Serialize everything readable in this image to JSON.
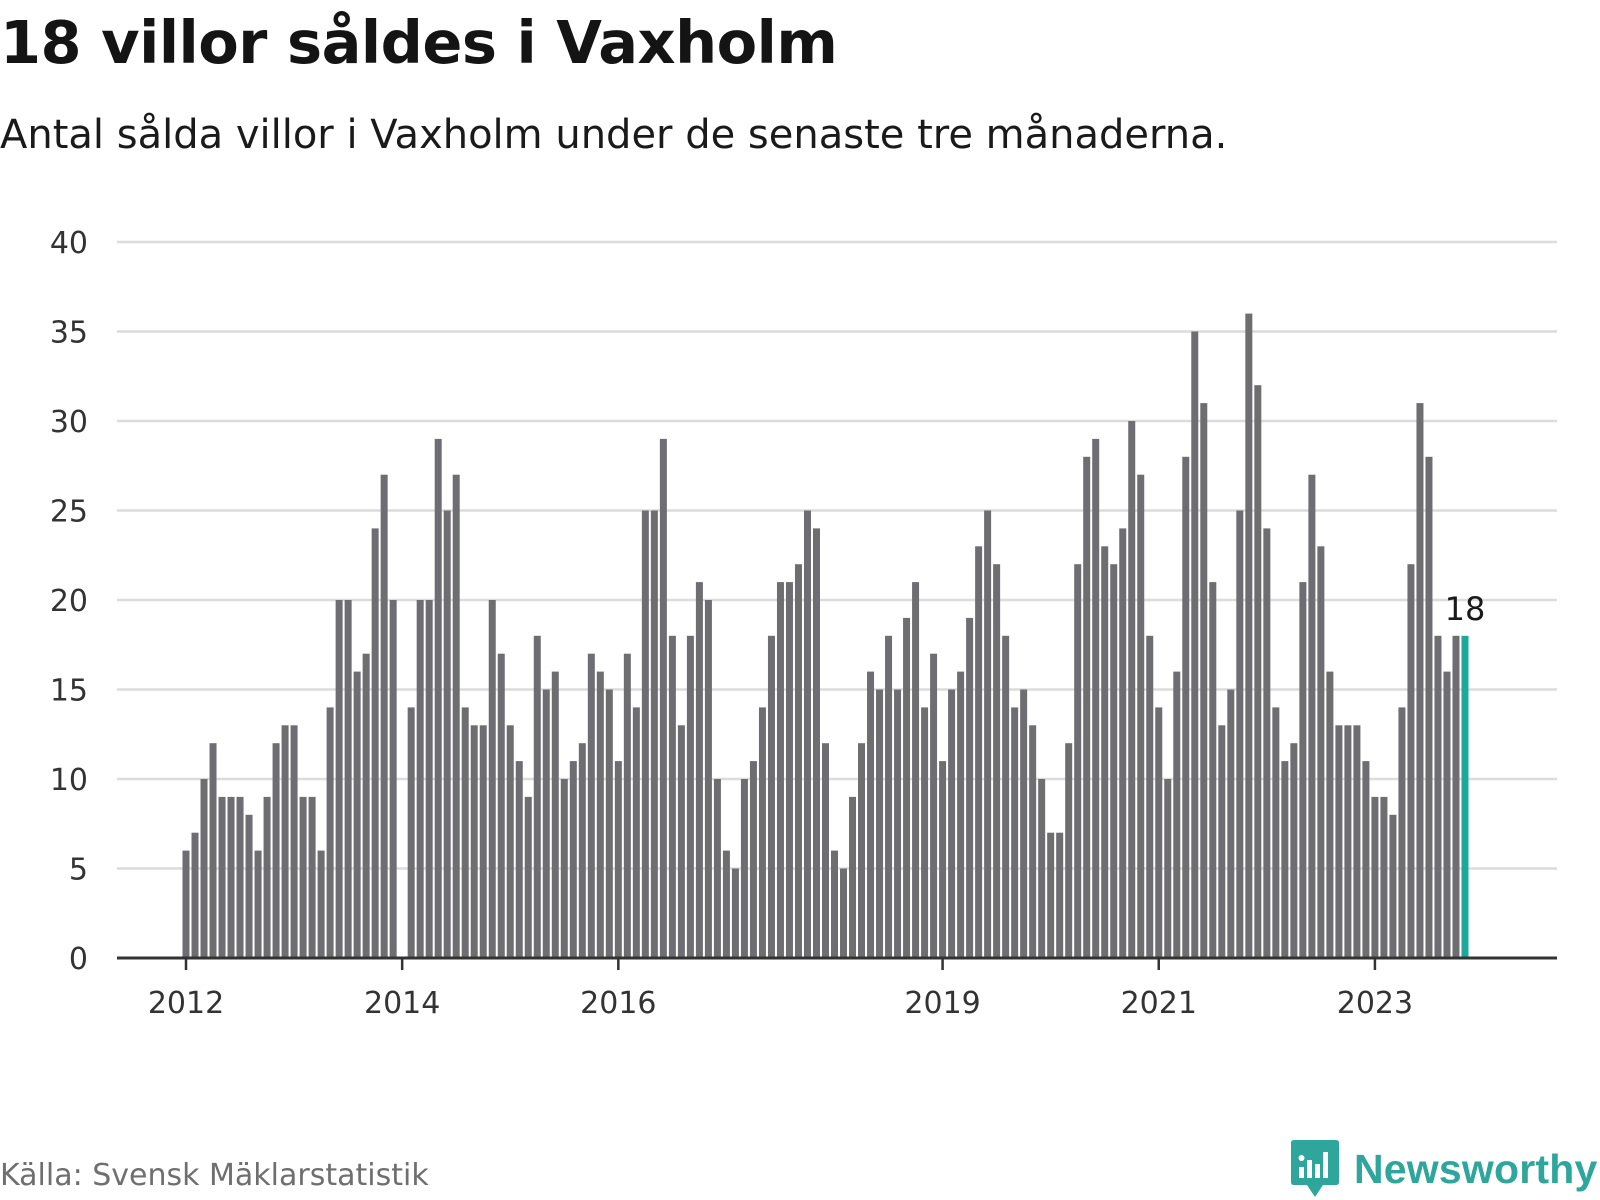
{
  "title": "18 villor såldes i Vaxholm",
  "subtitle": "Antal sålda villor i Vaxholm under de senaste tre månaderna.",
  "source": "Källa: Svensk Mäklarstatistik",
  "brand": "Newsworthy",
  "colors": {
    "bar": "#6e6d72",
    "highlight": "#1ea89c",
    "grid": "#dcdcdc",
    "axis": "#333333",
    "brand": "#2fa69c"
  },
  "chart_data": {
    "type": "bar",
    "title": "18 villor såldes i Vaxholm",
    "xlabel": "",
    "ylabel": "",
    "ylim": [
      0,
      40
    ],
    "yticks": [
      0,
      5,
      10,
      15,
      20,
      25,
      30,
      35,
      40
    ],
    "grid": true,
    "start": "2012-01",
    "xtick_labels": [
      {
        "label": "2012",
        "index": 0
      },
      {
        "label": "2014",
        "index": 24
      },
      {
        "label": "2016",
        "index": 48
      },
      {
        "label": "2019",
        "index": 84
      },
      {
        "label": "2021",
        "index": 108
      },
      {
        "label": "2023",
        "index": 132
      }
    ],
    "values": [
      6,
      7,
      10,
      12,
      9,
      9,
      9,
      8,
      6,
      9,
      12,
      13,
      13,
      9,
      9,
      6,
      14,
      20,
      20,
      16,
      17,
      24,
      27,
      20,
      0,
      14,
      20,
      20,
      29,
      25,
      27,
      14,
      13,
      13,
      20,
      17,
      13,
      11,
      9,
      18,
      15,
      16,
      10,
      11,
      12,
      17,
      16,
      15,
      11,
      17,
      14,
      25,
      25,
      29,
      18,
      13,
      18,
      21,
      20,
      10,
      6,
      5,
      10,
      11,
      14,
      18,
      21,
      21,
      22,
      25,
      24,
      12,
      6,
      5,
      9,
      12,
      16,
      15,
      18,
      15,
      19,
      21,
      14,
      17,
      11,
      15,
      16,
      19,
      23,
      25,
      22,
      18,
      14,
      15,
      13,
      10,
      7,
      7,
      12,
      22,
      28,
      29,
      23,
      22,
      24,
      30,
      27,
      18,
      14,
      10,
      16,
      28,
      35,
      31,
      21,
      13,
      15,
      25,
      36,
      32,
      24,
      14,
      11,
      12,
      21,
      27,
      23,
      16,
      13,
      13,
      13,
      11,
      9,
      9,
      8,
      14,
      22,
      31,
      28,
      18,
      16,
      18,
      18
    ],
    "highlight_index": 142,
    "highlight_label": "18"
  }
}
